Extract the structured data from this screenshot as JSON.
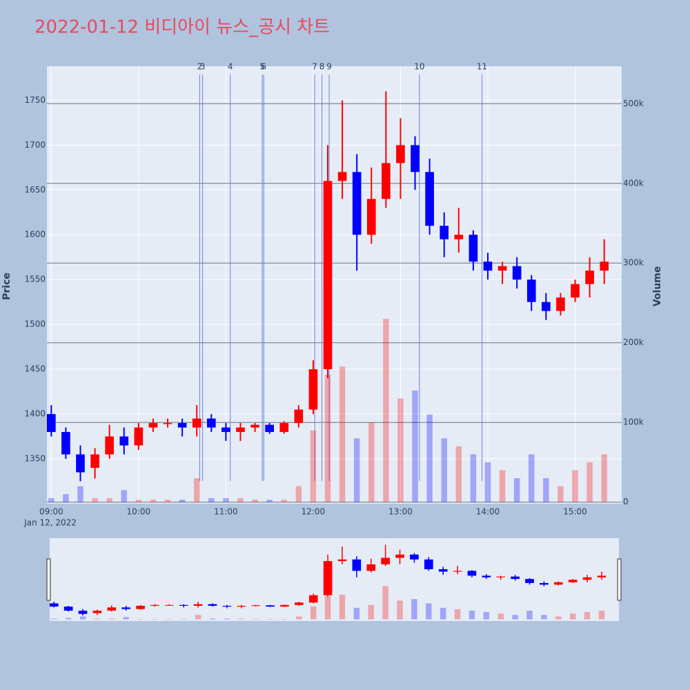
{
  "chart_data": {
    "type": "candlestick",
    "title": "2022-01-12 비디아이 뉴스_공시 차트",
    "y_label": "Price",
    "y2_label": "Volume",
    "x_sublabel": "Jan 12, 2022",
    "increasing_color": "#ff0000",
    "decreasing_color": "#0000ff",
    "x": [
      "09:00",
      "09:10",
      "09:20",
      "09:30",
      "09:40",
      "09:50",
      "10:00",
      "10:10",
      "10:20",
      "10:30",
      "10:40",
      "10:50",
      "11:00",
      "11:10",
      "11:20",
      "11:30",
      "11:40",
      "11:50",
      "12:00",
      "12:10",
      "12:20",
      "12:30",
      "12:40",
      "12:50",
      "13:00",
      "13:10",
      "13:20",
      "13:30",
      "13:40",
      "13:50",
      "14:00",
      "14:10",
      "14:20",
      "14:30",
      "14:40",
      "14:50",
      "15:00",
      "15:10",
      "15:20"
    ],
    "open": [
      1400,
      1380,
      1355,
      1340,
      1355,
      1375,
      1365,
      1385,
      1390,
      1390,
      1385,
      1395,
      1385,
      1380,
      1385,
      1388,
      1380,
      1390,
      1405,
      1450,
      1660,
      1670,
      1600,
      1640,
      1680,
      1700,
      1670,
      1610,
      1595,
      1600,
      1570,
      1560,
      1565,
      1550,
      1525,
      1515,
      1530,
      1545,
      1560
    ],
    "high": [
      1410,
      1385,
      1365,
      1362,
      1388,
      1385,
      1390,
      1395,
      1395,
      1395,
      1410,
      1400,
      1390,
      1390,
      1390,
      1390,
      1392,
      1410,
      1460,
      1700,
      1750,
      1690,
      1675,
      1760,
      1730,
      1710,
      1685,
      1625,
      1630,
      1605,
      1580,
      1570,
      1575,
      1555,
      1535,
      1535,
      1550,
      1575,
      1595
    ],
    "low": [
      1375,
      1350,
      1325,
      1328,
      1350,
      1355,
      1360,
      1380,
      1385,
      1375,
      1375,
      1380,
      1370,
      1370,
      1380,
      1378,
      1378,
      1385,
      1400,
      1440,
      1640,
      1560,
      1590,
      1630,
      1640,
      1650,
      1600,
      1575,
      1580,
      1560,
      1550,
      1545,
      1540,
      1515,
      1505,
      1510,
      1525,
      1530,
      1545
    ],
    "close": [
      1380,
      1355,
      1335,
      1355,
      1375,
      1365,
      1385,
      1390,
      1390,
      1385,
      1395,
      1385,
      1380,
      1385,
      1388,
      1380,
      1390,
      1405,
      1450,
      1660,
      1670,
      1600,
      1640,
      1680,
      1700,
      1670,
      1610,
      1595,
      1600,
      1570,
      1560,
      1565,
      1550,
      1525,
      1515,
      1530,
      1545,
      1560,
      1570
    ],
    "volume": [
      5000,
      10000,
      20000,
      5000,
      5000,
      15000,
      3000,
      3000,
      3000,
      3000,
      30000,
      5000,
      5000,
      5000,
      3000,
      3000,
      3000,
      20000,
      90000,
      160000,
      170000,
      80000,
      100000,
      230000,
      130000,
      140000,
      110000,
      80000,
      70000,
      60000,
      50000,
      40000,
      30000,
      60000,
      30000,
      20000,
      40000,
      50000,
      60000
    ],
    "xlim": [
      "08:57",
      "15:32"
    ],
    "xticks": [
      "09:00",
      "10:00",
      "11:00",
      "12:00",
      "13:00",
      "14:00",
      "15:00"
    ],
    "ylim": [
      1300,
      1788
    ],
    "yticks": [
      1350,
      1400,
      1450,
      1500,
      1550,
      1600,
      1650,
      1700,
      1750
    ],
    "y2lim": [
      -2000,
      547000
    ],
    "y2ticks": [
      0,
      {
        "value": 100000,
        "label": "100k"
      },
      {
        "value": 200000,
        "label": "200k"
      },
      {
        "value": 300000,
        "label": "300k"
      },
      {
        "value": 400000,
        "label": "400k"
      },
      {
        "value": 500000,
        "label": "500k"
      }
    ],
    "grid": true,
    "news": [
      {
        "x": "10:42",
        "label": "2"
      },
      {
        "x": "10:44",
        "label": "3"
      },
      {
        "x": "11:03",
        "label": "4"
      },
      {
        "x": "11:25",
        "label": "5"
      },
      {
        "x": "11:26",
        "label": "6"
      },
      {
        "x": "12:01",
        "label": "7"
      },
      {
        "x": "12:06",
        "label": "8"
      },
      {
        "x": "12:11",
        "label": "9"
      },
      {
        "x": "13:13",
        "label": "10"
      },
      {
        "x": "13:56",
        "label": "11"
      }
    ]
  }
}
